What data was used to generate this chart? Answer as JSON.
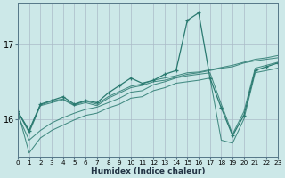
{
  "xlabel": "Humidex (Indice chaleur)",
  "bg_color": "#cce8e8",
  "grid_color": "#aabbc8",
  "line_color": "#2a7a70",
  "xlim": [
    0,
    23
  ],
  "ylim": [
    15.5,
    17.55
  ],
  "yticks": [
    16,
    17
  ],
  "xticks": [
    0,
    1,
    2,
    3,
    4,
    5,
    6,
    7,
    8,
    9,
    10,
    11,
    12,
    13,
    14,
    15,
    16,
    17,
    18,
    19,
    20,
    21,
    22,
    23
  ],
  "lines": [
    {
      "y": [
        16.1,
        15.85,
        16.2,
        16.25,
        16.3,
        16.2,
        16.25,
        16.22,
        16.35,
        16.45,
        16.55,
        16.48,
        16.52,
        16.6,
        16.65,
        17.32,
        17.42,
        16.55,
        16.15,
        15.78,
        16.05,
        16.65,
        16.7,
        16.75
      ],
      "marker": true,
      "lw": 0.9
    },
    {
      "y": [
        16.1,
        15.82,
        16.18,
        16.22,
        16.26,
        16.18,
        16.22,
        16.18,
        16.28,
        16.35,
        16.42,
        16.45,
        16.5,
        16.52,
        16.56,
        16.6,
        16.62,
        16.65,
        16.68,
        16.7,
        16.75,
        16.78,
        16.8,
        16.82
      ],
      "marker": false,
      "lw": 0.75
    },
    {
      "y": [
        16.1,
        15.84,
        16.19,
        16.24,
        16.27,
        16.19,
        16.24,
        16.2,
        16.3,
        16.37,
        16.44,
        16.47,
        16.52,
        16.55,
        16.58,
        16.62,
        16.63,
        16.66,
        16.69,
        16.72,
        16.76,
        16.8,
        16.82,
        16.85
      ],
      "marker": false,
      "lw": 0.75
    },
    {
      "y": [
        16.1,
        15.55,
        15.75,
        15.85,
        15.92,
        15.99,
        16.05,
        16.08,
        16.15,
        16.2,
        16.28,
        16.3,
        16.38,
        16.42,
        16.48,
        16.5,
        16.52,
        16.55,
        15.72,
        15.68,
        16.0,
        16.62,
        16.65,
        16.68
      ],
      "marker": false,
      "lw": 0.75
    },
    {
      "y": [
        16.05,
        15.72,
        15.85,
        15.95,
        16.02,
        16.08,
        16.13,
        16.16,
        16.22,
        16.28,
        16.36,
        16.38,
        16.46,
        16.5,
        16.55,
        16.58,
        16.6,
        16.62,
        16.2,
        15.8,
        16.1,
        16.68,
        16.72,
        16.76
      ],
      "marker": false,
      "lw": 0.75
    }
  ]
}
